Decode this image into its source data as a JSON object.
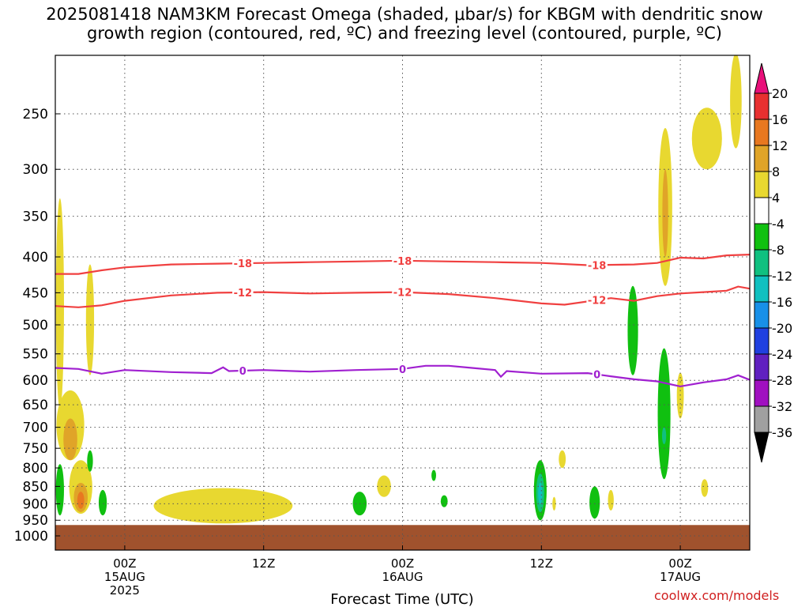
{
  "title": {
    "line1": "2025081418 NAM3KM Forecast Omega (shaded, μbar/s) for KBGM with dendritic snow",
    "line2": "growth region (contoured, red, ºC) and freezing level (contoured, purple, ºC)"
  },
  "credit": "coolwx.com/models",
  "chart_data": {
    "type": "time-height cross section",
    "xlabel": "Forecast Time (UTC)",
    "x_range_hours": [
      -6,
      54
    ],
    "x_ticks": [
      {
        "hour": 0,
        "lines": [
          "00Z",
          "15AUG",
          "2025"
        ]
      },
      {
        "hour": 12,
        "lines": [
          "12Z"
        ]
      },
      {
        "hour": 24,
        "lines": [
          "00Z",
          "16AUG"
        ]
      },
      {
        "hour": 36,
        "lines": [
          "12Z"
        ]
      },
      {
        "hour": 48,
        "lines": [
          "00Z",
          "17AUG"
        ]
      }
    ],
    "y_ticks_hpa": [
      250,
      300,
      350,
      400,
      450,
      500,
      550,
      600,
      650,
      700,
      750,
      800,
      850,
      900,
      950,
      1000
    ],
    "y_scale": "log",
    "surface_pressure_hpa": 965,
    "colorbar": {
      "labels": [
        "20",
        "16",
        "12",
        "8",
        "4",
        "-4",
        "-8",
        "-12",
        "-16",
        "-20",
        "-24",
        "-28",
        "-32",
        "-36"
      ],
      "colors": [
        "#e8107a",
        "#e83030",
        "#e87820",
        "#e0a428",
        "#e8d830",
        "#ffffff",
        "#10c010",
        "#10c080",
        "#10c0c0",
        "#1890e8",
        "#2040e0",
        "#6020c0",
        "#a010c0",
        "#a0a0a0",
        "#000000"
      ]
    },
    "contours": [
      {
        "label": "-18",
        "color": "#f04040",
        "points": [
          [
            -6,
            423
          ],
          [
            -4,
            423
          ],
          [
            -2,
            418
          ],
          [
            0,
            414
          ],
          [
            4,
            410
          ],
          [
            8,
            409
          ],
          [
            12,
            408
          ],
          [
            16,
            407
          ],
          [
            20,
            406
          ],
          [
            24,
            405
          ],
          [
            28,
            406
          ],
          [
            32,
            407
          ],
          [
            36,
            408
          ],
          [
            40,
            411
          ],
          [
            44,
            410
          ],
          [
            46,
            408
          ],
          [
            48,
            401
          ],
          [
            50,
            402
          ],
          [
            52,
            398
          ],
          [
            54,
            397
          ]
        ]
      },
      {
        "label": "-12",
        "color": "#f04040",
        "points": [
          [
            -6,
            470
          ],
          [
            -4,
            472
          ],
          [
            -2,
            469
          ],
          [
            0,
            462
          ],
          [
            4,
            454
          ],
          [
            8,
            450
          ],
          [
            12,
            449
          ],
          [
            16,
            451
          ],
          [
            20,
            450
          ],
          [
            24,
            449
          ],
          [
            28,
            452
          ],
          [
            32,
            458
          ],
          [
            36,
            466
          ],
          [
            38,
            468
          ],
          [
            40,
            463
          ],
          [
            42,
            458
          ],
          [
            44,
            462
          ],
          [
            46,
            455
          ],
          [
            48,
            451
          ],
          [
            50,
            449
          ],
          [
            52,
            447
          ],
          [
            53,
            441
          ],
          [
            54,
            444
          ]
        ]
      },
      {
        "label": "0",
        "color": "#a020d0",
        "points": [
          [
            -6,
            576
          ],
          [
            -4,
            578
          ],
          [
            -2,
            587
          ],
          [
            0,
            580
          ],
          [
            4,
            584
          ],
          [
            7.5,
            586
          ],
          [
            8.5,
            575
          ],
          [
            9,
            582
          ],
          [
            12,
            580
          ],
          [
            16,
            583
          ],
          [
            20,
            580
          ],
          [
            24,
            578
          ],
          [
            26,
            572
          ],
          [
            28,
            572
          ],
          [
            30,
            576
          ],
          [
            32,
            580
          ],
          [
            32.5,
            593
          ],
          [
            33,
            582
          ],
          [
            36,
            587
          ],
          [
            40,
            586
          ],
          [
            42,
            592
          ],
          [
            44,
            598
          ],
          [
            46,
            602
          ],
          [
            48,
            612
          ],
          [
            50,
            604
          ],
          [
            52,
            598
          ],
          [
            53,
            590
          ],
          [
            54,
            599
          ]
        ]
      }
    ],
    "omega_regions": [
      {
        "value": 4,
        "color": "#e8d830",
        "hour": -5.6,
        "hw": 0.35,
        "p_top": 330,
        "p_bot": 660
      },
      {
        "value": 4,
        "color": "#e8d830",
        "hour": -3.0,
        "hw": 0.35,
        "p_top": 410,
        "p_bot": 590
      },
      {
        "value": 4,
        "color": "#e8d830",
        "hour": -4.7,
        "hw": 1.2,
        "p_top": 620,
        "p_bot": 780
      },
      {
        "value": 8,
        "color": "#e0a428",
        "hour": -4.7,
        "hw": 0.6,
        "p_top": 680,
        "p_bot": 780
      },
      {
        "value": 4,
        "color": "#e8d830",
        "hour": -3.8,
        "hw": 1.0,
        "p_top": 780,
        "p_bot": 930
      },
      {
        "value": 8,
        "color": "#e0a428",
        "hour": -3.8,
        "hw": 0.6,
        "p_top": 840,
        "p_bot": 925
      },
      {
        "value": 12,
        "color": "#e87820",
        "hour": -3.8,
        "hw": 0.3,
        "p_top": 865,
        "p_bot": 915
      },
      {
        "value": 4,
        "color": "#e8d830",
        "hour": 8.5,
        "hw": 6.0,
        "p_top": 855,
        "p_bot": 960
      },
      {
        "value": 4,
        "color": "#e8d830",
        "hour": 22.4,
        "hw": 0.6,
        "p_top": 820,
        "p_bot": 880
      },
      {
        "value": 4,
        "color": "#e8d830",
        "hour": 37.8,
        "hw": 0.3,
        "p_top": 755,
        "p_bot": 800
      },
      {
        "value": 4,
        "color": "#e8d830",
        "hour": 37.1,
        "hw": 0.15,
        "p_top": 880,
        "p_bot": 920
      },
      {
        "value": 4,
        "color": "#e8d830",
        "hour": 42.0,
        "hw": 0.25,
        "p_top": 860,
        "p_bot": 920
      },
      {
        "value": 4,
        "color": "#e8d830",
        "hour": 46.7,
        "hw": 0.6,
        "p_top": 262,
        "p_bot": 440
      },
      {
        "value": 8,
        "color": "#e0a428",
        "hour": 46.7,
        "hw": 0.25,
        "p_top": 300,
        "p_bot": 400
      },
      {
        "value": 4,
        "color": "#e8d830",
        "hour": 48.0,
        "hw": 0.3,
        "p_top": 585,
        "p_bot": 680
      },
      {
        "value": 4,
        "color": "#e8d830",
        "hour": 50.3,
        "hw": 1.3,
        "p_top": 245,
        "p_bot": 300
      },
      {
        "value": 4,
        "color": "#e8d830",
        "hour": 52.8,
        "hw": 0.5,
        "p_top": 205,
        "p_bot": 280
      },
      {
        "value": 4,
        "color": "#e8d830",
        "hour": 50.1,
        "hw": 0.3,
        "p_top": 830,
        "p_bot": 880
      },
      {
        "value": -4,
        "color": "#10c010",
        "hour": -5.6,
        "hw": 0.35,
        "p_top": 790,
        "p_bot": 935
      },
      {
        "value": -4,
        "color": "#10c010",
        "hour": -3.0,
        "hw": 0.25,
        "p_top": 755,
        "p_bot": 810
      },
      {
        "value": -4,
        "color": "#10c010",
        "hour": -1.9,
        "hw": 0.35,
        "p_top": 860,
        "p_bot": 935
      },
      {
        "value": -4,
        "color": "#10c010",
        "hour": 20.3,
        "hw": 0.6,
        "p_top": 865,
        "p_bot": 935
      },
      {
        "value": -4,
        "color": "#10c010",
        "hour": 26.7,
        "hw": 0.2,
        "p_top": 805,
        "p_bot": 835
      },
      {
        "value": -4,
        "color": "#10c010",
        "hour": 27.6,
        "hw": 0.3,
        "p_top": 875,
        "p_bot": 910
      },
      {
        "value": -4,
        "color": "#10c010",
        "hour": 35.9,
        "hw": 0.55,
        "p_top": 780,
        "p_bot": 950
      },
      {
        "value": -8,
        "color": "#10c080",
        "hour": 35.9,
        "hw": 0.35,
        "p_top": 815,
        "p_bot": 925
      },
      {
        "value": -12,
        "color": "#10c0c0",
        "hour": 35.9,
        "hw": 0.18,
        "p_top": 840,
        "p_bot": 900
      },
      {
        "value": -4,
        "color": "#10c010",
        "hour": 40.6,
        "hw": 0.45,
        "p_top": 850,
        "p_bot": 945
      },
      {
        "value": -4,
        "color": "#10c010",
        "hour": 43.9,
        "hw": 0.45,
        "p_top": 440,
        "p_bot": 590
      },
      {
        "value": -4,
        "color": "#10c010",
        "hour": 46.6,
        "hw": 0.55,
        "p_top": 540,
        "p_bot": 830
      },
      {
        "value": -8,
        "color": "#10c080",
        "hour": 46.6,
        "hw": 0.18,
        "p_top": 700,
        "p_bot": 740
      }
    ]
  }
}
